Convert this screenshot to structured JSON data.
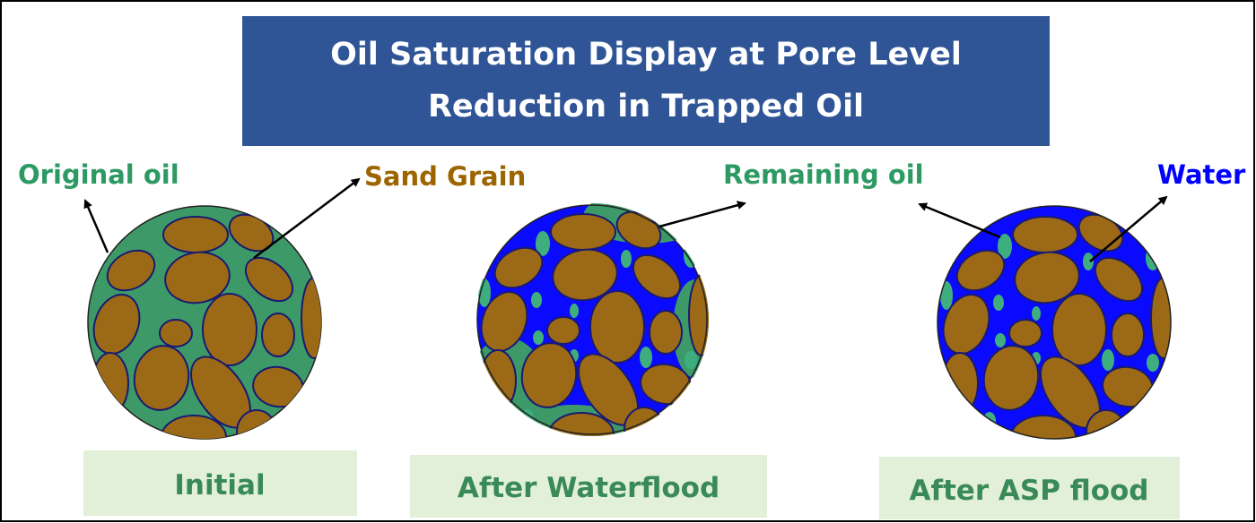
{
  "header": {
    "title": [
      "Oil Saturation Display at Pore Level",
      "Reduction in Trapped Oil"
    ]
  },
  "labels": {
    "original_oil": "Original oil",
    "sand_grain": "Sand Grain",
    "remaining_oil": "Remaining oil",
    "water": "Water"
  },
  "panels": [
    {
      "caption": "Initial"
    },
    {
      "caption": "After Waterflood"
    },
    {
      "caption": "After ASP flood"
    }
  ]
}
